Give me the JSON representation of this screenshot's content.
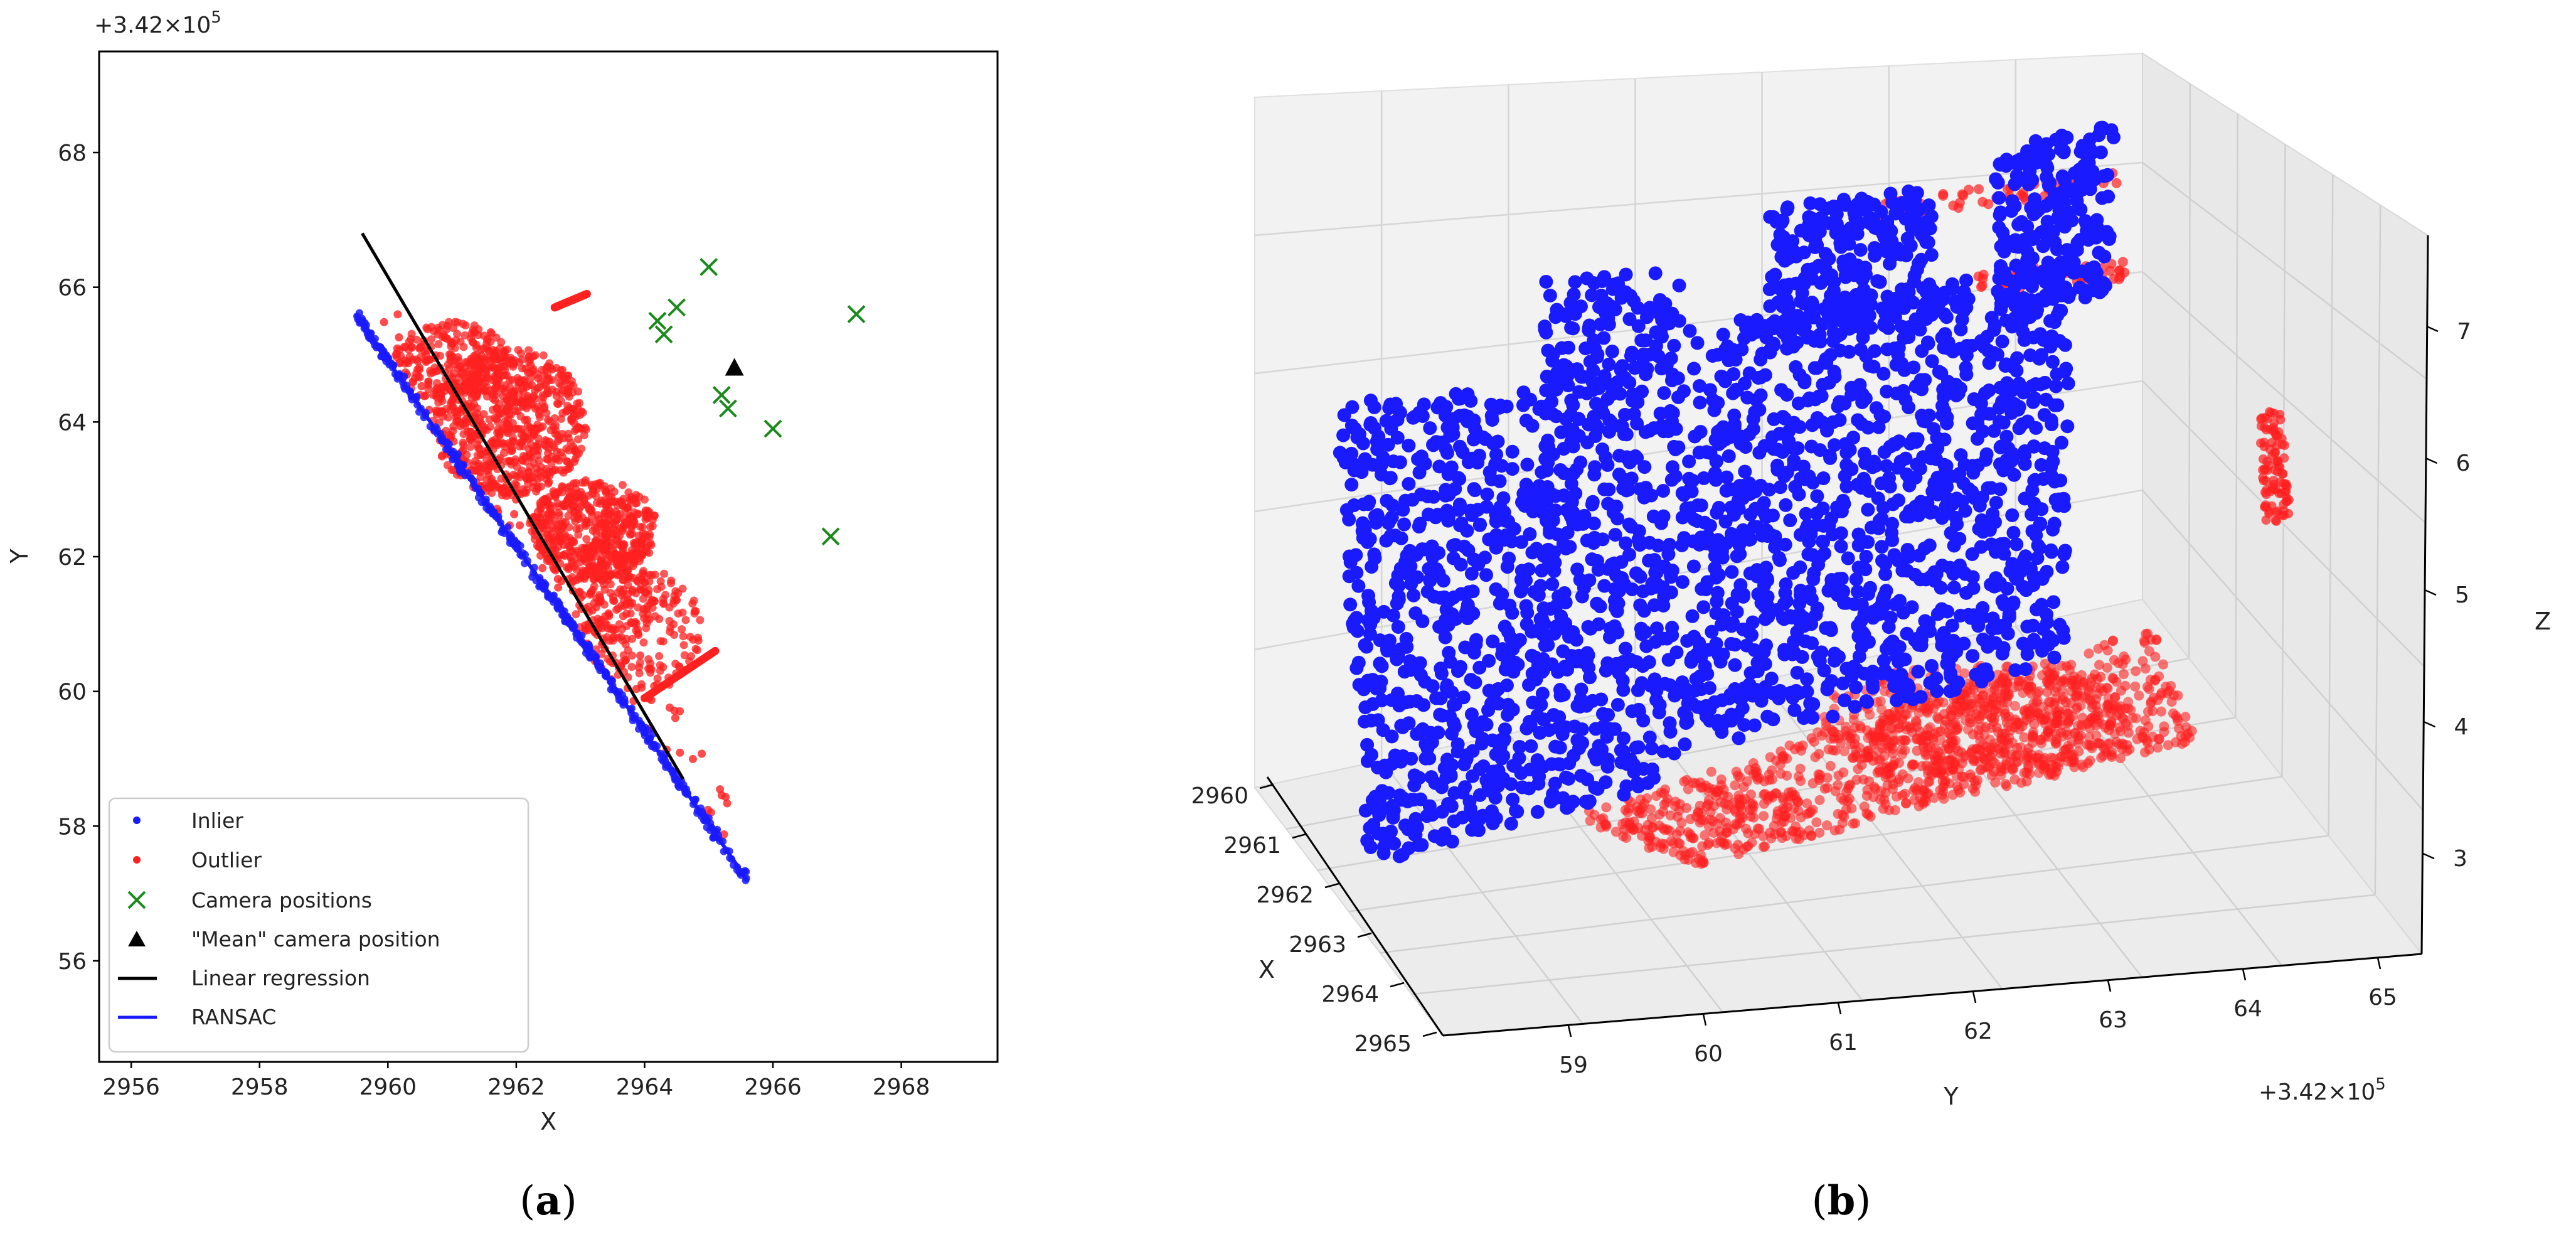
{
  "chart_data": [
    {
      "panel": "a",
      "type": "scatter",
      "xlabel": "X",
      "ylabel": "Y",
      "offset_label": "+3.42×10",
      "offset_exp": "5",
      "xlim": [
        2955.5,
        2969.5
      ],
      "ylim": [
        54.5,
        69.5
      ],
      "xticks": [
        2956,
        2958,
        2960,
        2962,
        2964,
        2966,
        2968
      ],
      "yticks": [
        56,
        58,
        60,
        62,
        64,
        66,
        68
      ],
      "colors": {
        "inlier": "#1a1aff",
        "outlier": "#ff2020",
        "camera": "#1a8a1a",
        "mean": "#000000",
        "linreg": "#000000",
        "ransac": "#1a1aff"
      },
      "series": [
        {
          "name": "Inlier",
          "line": {
            "from": [
              2959.5,
              65.6
            ],
            "to": [
              2965.6,
              57.2
            ]
          },
          "count": 420,
          "spread": 0.12
        },
        {
          "name": "Outlier",
          "clusters": [
            {
              "cx": 2961.9,
              "cy": 64.0,
              "rx": 1.2,
              "ry": 1.1,
              "n": 700
            },
            {
              "cx": 2963.2,
              "cy": 62.4,
              "rx": 1.0,
              "ry": 0.75,
              "n": 500
            },
            {
              "cx": 2961.0,
              "cy": 64.9,
              "rx": 0.9,
              "ry": 0.6,
              "n": 220
            },
            {
              "cx": 2964.0,
              "cy": 60.9,
              "rx": 0.9,
              "ry": 0.9,
              "n": 160
            },
            {
              "cx": 2963.5,
              "cy": 61.5,
              "rx": 0.7,
              "ry": 0.8,
              "n": 140
            }
          ],
          "streak": {
            "from": [
              2962.6,
              65.7
            ],
            "to": [
              2963.1,
              65.9
            ]
          },
          "bar": {
            "from": [
              2964.0,
              59.9
            ],
            "to": [
              2965.1,
              60.6
            ]
          }
        },
        {
          "name": "Camera positions",
          "points": [
            [
              2965.0,
              66.3
            ],
            [
              2967.3,
              65.6
            ],
            [
              2964.2,
              65.5
            ],
            [
              2964.5,
              65.7
            ],
            [
              2964.3,
              65.3
            ],
            [
              2965.2,
              64.4
            ],
            [
              2965.3,
              64.2
            ],
            [
              2966.0,
              63.9
            ],
            [
              2966.9,
              62.3
            ]
          ]
        },
        {
          "name": "\"Mean\" camera position",
          "points": [
            [
              2965.4,
              64.8
            ]
          ]
        },
        {
          "name": "Linear regression",
          "line": {
            "from": [
              2959.6,
              66.8
            ],
            "to": [
              2964.6,
              58.7
            ]
          }
        },
        {
          "name": "RANSAC",
          "line": {
            "from": [
              2959.5,
              65.6
            ],
            "to": [
              2965.6,
              57.2
            ]
          }
        }
      ],
      "legend": [
        "Inlier",
        "Outlier",
        "Camera positions",
        "\"Mean\" camera position",
        "Linear regression",
        "RANSAC"
      ],
      "legend_position": "lower-left"
    },
    {
      "panel": "b",
      "type": "scatter3d",
      "xlabel": "X",
      "ylabel": "Y",
      "zlabel": "Z",
      "offset_label": "+3.42×10",
      "offset_exp": "5",
      "xticks": [
        2960,
        2961,
        2962,
        2963,
        2964,
        2965
      ],
      "yticks": [
        59,
        60,
        61,
        62,
        63,
        64,
        65
      ],
      "zticks": [
        3,
        4,
        5,
        6,
        7
      ],
      "series": [
        {
          "name": "Inlier",
          "color": "#1a1aff"
        },
        {
          "name": "Outlier",
          "color": "#ff2020"
        }
      ]
    }
  ],
  "captions": {
    "a": "a",
    "b": "b"
  }
}
